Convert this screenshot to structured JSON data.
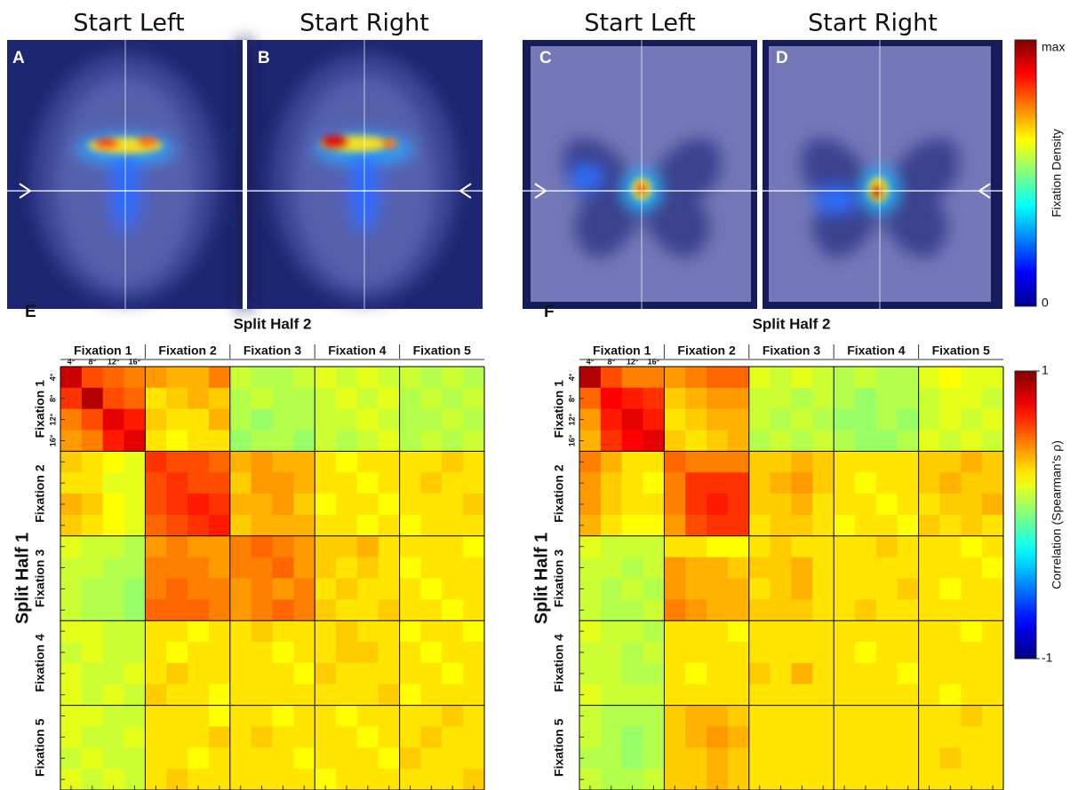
{
  "top_figure": {
    "titles": [
      "Start Left",
      "Start Right",
      "Start Left",
      "Start Right"
    ],
    "panel_labels": [
      "A",
      "B",
      "C",
      "D"
    ],
    "colorbar": {
      "label": "Fixation Density",
      "tick_labels": [
        "max",
        "0"
      ]
    }
  },
  "chart_data": [
    {
      "type": "heatmap",
      "panel_label": "E",
      "title": "Split Half 2",
      "ylabel": "Split Half 1",
      "groups": [
        "Fixation 1",
        "Fixation 2",
        "Fixation 3",
        "Fixation 4",
        "Fixation 5"
      ],
      "categories": [
        "4°",
        "8°",
        "12°",
        "16°",
        null,
        null,
        null,
        null,
        null,
        null,
        null,
        null,
        null,
        null,
        null,
        null,
        null,
        null,
        null,
        null
      ],
      "colormap": "jet",
      "clim": [
        -1,
        1
      ],
      "values": [
        [
          0.85,
          0.6,
          0.55,
          0.5,
          0.45,
          0.4,
          0.4,
          0.5,
          0.15,
          0.1,
          0.1,
          0.15,
          0.2,
          0.15,
          0.2,
          0.15,
          0.15,
          0.1,
          0.15,
          0.1
        ],
        [
          0.65,
          0.9,
          0.6,
          0.55,
          0.3,
          0.35,
          0.4,
          0.35,
          0.1,
          0.15,
          0.1,
          0.1,
          0.15,
          0.2,
          0.15,
          0.2,
          0.1,
          0.15,
          0.1,
          0.15
        ],
        [
          0.5,
          0.6,
          0.8,
          0.7,
          0.35,
          0.3,
          0.3,
          0.4,
          0.1,
          0.05,
          0.1,
          0.1,
          0.15,
          0.15,
          0.2,
          0.15,
          0.1,
          0.1,
          0.15,
          0.1
        ],
        [
          0.45,
          0.5,
          0.7,
          0.8,
          0.3,
          0.25,
          0.3,
          0.3,
          0.05,
          0.1,
          0.1,
          0.05,
          0.15,
          0.1,
          0.15,
          0.2,
          0.1,
          0.15,
          0.1,
          0.15
        ],
        [
          0.35,
          0.3,
          0.25,
          0.2,
          0.65,
          0.6,
          0.6,
          0.55,
          0.4,
          0.45,
          0.4,
          0.4,
          0.3,
          0.25,
          0.3,
          0.3,
          0.3,
          0.3,
          0.35,
          0.3
        ],
        [
          0.3,
          0.3,
          0.2,
          0.2,
          0.6,
          0.65,
          0.6,
          0.6,
          0.35,
          0.45,
          0.45,
          0.4,
          0.3,
          0.3,
          0.25,
          0.3,
          0.3,
          0.35,
          0.3,
          0.3
        ],
        [
          0.4,
          0.35,
          0.25,
          0.2,
          0.6,
          0.65,
          0.7,
          0.65,
          0.4,
          0.4,
          0.45,
          0.35,
          0.25,
          0.3,
          0.3,
          0.25,
          0.3,
          0.3,
          0.3,
          0.35
        ],
        [
          0.35,
          0.3,
          0.25,
          0.2,
          0.55,
          0.6,
          0.65,
          0.7,
          0.35,
          0.4,
          0.4,
          0.4,
          0.3,
          0.3,
          0.25,
          0.3,
          0.25,
          0.3,
          0.3,
          0.3
        ],
        [
          0.2,
          0.15,
          0.15,
          0.1,
          0.45,
          0.5,
          0.45,
          0.45,
          0.5,
          0.55,
          0.5,
          0.45,
          0.35,
          0.35,
          0.4,
          0.3,
          0.3,
          0.3,
          0.3,
          0.25
        ],
        [
          0.15,
          0.15,
          0.1,
          0.1,
          0.5,
          0.5,
          0.5,
          0.45,
          0.5,
          0.5,
          0.55,
          0.45,
          0.35,
          0.3,
          0.35,
          0.3,
          0.25,
          0.3,
          0.3,
          0.3
        ],
        [
          0.15,
          0.1,
          0.1,
          0.05,
          0.5,
          0.55,
          0.5,
          0.5,
          0.45,
          0.5,
          0.45,
          0.5,
          0.3,
          0.35,
          0.3,
          0.3,
          0.3,
          0.25,
          0.3,
          0.3
        ],
        [
          0.15,
          0.1,
          0.1,
          0.05,
          0.55,
          0.55,
          0.55,
          0.5,
          0.45,
          0.5,
          0.55,
          0.5,
          0.35,
          0.3,
          0.3,
          0.35,
          0.3,
          0.3,
          0.25,
          0.3
        ],
        [
          0.2,
          0.2,
          0.15,
          0.15,
          0.3,
          0.3,
          0.25,
          0.3,
          0.3,
          0.35,
          0.3,
          0.3,
          0.3,
          0.35,
          0.3,
          0.3,
          0.25,
          0.3,
          0.3,
          0.25
        ],
        [
          0.15,
          0.2,
          0.15,
          0.15,
          0.3,
          0.25,
          0.3,
          0.3,
          0.3,
          0.3,
          0.25,
          0.3,
          0.3,
          0.35,
          0.35,
          0.3,
          0.3,
          0.25,
          0.3,
          0.3
        ],
        [
          0.2,
          0.15,
          0.15,
          0.2,
          0.3,
          0.35,
          0.3,
          0.3,
          0.3,
          0.3,
          0.3,
          0.25,
          0.35,
          0.3,
          0.3,
          0.3,
          0.3,
          0.3,
          0.25,
          0.3
        ],
        [
          0.2,
          0.15,
          0.2,
          0.15,
          0.35,
          0.3,
          0.3,
          0.25,
          0.3,
          0.3,
          0.3,
          0.3,
          0.3,
          0.3,
          0.3,
          0.35,
          0.25,
          0.3,
          0.3,
          0.3
        ],
        [
          0.2,
          0.2,
          0.15,
          0.15,
          0.3,
          0.3,
          0.3,
          0.25,
          0.3,
          0.3,
          0.25,
          0.3,
          0.3,
          0.25,
          0.3,
          0.3,
          0.3,
          0.3,
          0.35,
          0.3
        ],
        [
          0.2,
          0.15,
          0.15,
          0.2,
          0.3,
          0.3,
          0.3,
          0.35,
          0.3,
          0.35,
          0.3,
          0.3,
          0.3,
          0.3,
          0.25,
          0.3,
          0.3,
          0.35,
          0.3,
          0.3
        ],
        [
          0.15,
          0.2,
          0.15,
          0.15,
          0.3,
          0.3,
          0.25,
          0.3,
          0.3,
          0.3,
          0.3,
          0.25,
          0.3,
          0.3,
          0.3,
          0.25,
          0.35,
          0.3,
          0.3,
          0.3
        ],
        [
          0.2,
          0.15,
          0.2,
          0.15,
          0.3,
          0.35,
          0.3,
          0.3,
          0.3,
          0.3,
          0.3,
          0.3,
          0.25,
          0.3,
          0.3,
          0.3,
          0.3,
          0.3,
          0.3,
          0.35
        ]
      ]
    },
    {
      "type": "heatmap",
      "panel_label": "F",
      "title": "Split Half 2",
      "ylabel": "Split Half 1",
      "groups": [
        "Fixation 1",
        "Fixation 2",
        "Fixation 3",
        "Fixation 4",
        "Fixation 5"
      ],
      "categories": [
        "4°",
        "8°",
        "12°",
        "16°",
        null,
        null,
        null,
        null,
        null,
        null,
        null,
        null,
        null,
        null,
        null,
        null,
        null,
        null,
        null,
        null
      ],
      "colormap": "jet",
      "clim": [
        -1,
        1
      ],
      "colorbar": {
        "label": "Correlation (Spearman's ρ)",
        "ticks": [
          1,
          -1
        ]
      },
      "values": [
        [
          0.9,
          0.6,
          0.5,
          0.5,
          0.45,
          0.5,
          0.55,
          0.55,
          0.2,
          0.15,
          0.2,
          0.15,
          0.1,
          0.15,
          0.1,
          0.1,
          0.2,
          0.25,
          0.2,
          0.2
        ],
        [
          0.55,
          0.75,
          0.7,
          0.65,
          0.35,
          0.4,
          0.45,
          0.45,
          0.15,
          0.15,
          0.1,
          0.15,
          0.1,
          0.05,
          0.1,
          0.1,
          0.15,
          0.2,
          0.2,
          0.15
        ],
        [
          0.45,
          0.7,
          0.8,
          0.7,
          0.3,
          0.35,
          0.4,
          0.4,
          0.15,
          0.1,
          0.15,
          0.1,
          0.05,
          0.05,
          0.1,
          0.05,
          0.15,
          0.2,
          0.15,
          0.2
        ],
        [
          0.4,
          0.65,
          0.75,
          0.8,
          0.35,
          0.3,
          0.35,
          0.4,
          0.1,
          0.15,
          0.1,
          0.15,
          0.1,
          0.05,
          0.05,
          0.1,
          0.2,
          0.15,
          0.2,
          0.15
        ],
        [
          0.5,
          0.4,
          0.3,
          0.3,
          0.55,
          0.5,
          0.5,
          0.5,
          0.35,
          0.35,
          0.4,
          0.35,
          0.3,
          0.3,
          0.3,
          0.3,
          0.35,
          0.35,
          0.4,
          0.35
        ],
        [
          0.45,
          0.35,
          0.3,
          0.25,
          0.5,
          0.65,
          0.65,
          0.65,
          0.35,
          0.4,
          0.45,
          0.35,
          0.3,
          0.25,
          0.3,
          0.3,
          0.35,
          0.4,
          0.35,
          0.35
        ],
        [
          0.45,
          0.35,
          0.3,
          0.3,
          0.5,
          0.65,
          0.7,
          0.65,
          0.35,
          0.35,
          0.4,
          0.3,
          0.3,
          0.3,
          0.25,
          0.3,
          0.3,
          0.35,
          0.35,
          0.4
        ],
        [
          0.4,
          0.3,
          0.25,
          0.25,
          0.45,
          0.6,
          0.65,
          0.65,
          0.3,
          0.35,
          0.35,
          0.3,
          0.25,
          0.3,
          0.3,
          0.25,
          0.35,
          0.3,
          0.35,
          0.3
        ],
        [
          0.2,
          0.15,
          0.15,
          0.15,
          0.3,
          0.3,
          0.25,
          0.25,
          0.3,
          0.35,
          0.3,
          0.3,
          0.3,
          0.3,
          0.35,
          0.3,
          0.3,
          0.3,
          0.25,
          0.3
        ],
        [
          0.15,
          0.15,
          0.1,
          0.15,
          0.45,
          0.4,
          0.4,
          0.35,
          0.35,
          0.35,
          0.4,
          0.3,
          0.3,
          0.3,
          0.3,
          0.3,
          0.3,
          0.3,
          0.3,
          0.25
        ],
        [
          0.15,
          0.1,
          0.15,
          0.1,
          0.45,
          0.4,
          0.4,
          0.4,
          0.3,
          0.35,
          0.4,
          0.3,
          0.3,
          0.3,
          0.3,
          0.35,
          0.3,
          0.25,
          0.3,
          0.3
        ],
        [
          0.15,
          0.1,
          0.1,
          0.15,
          0.5,
          0.45,
          0.4,
          0.4,
          0.35,
          0.35,
          0.35,
          0.3,
          0.3,
          0.35,
          0.3,
          0.3,
          0.3,
          0.3,
          0.3,
          0.3
        ],
        [
          0.2,
          0.15,
          0.15,
          0.1,
          0.3,
          0.3,
          0.3,
          0.25,
          0.3,
          0.3,
          0.3,
          0.3,
          0.3,
          0.3,
          0.3,
          0.3,
          0.3,
          0.3,
          0.25,
          0.3
        ],
        [
          0.15,
          0.15,
          0.1,
          0.15,
          0.3,
          0.3,
          0.3,
          0.3,
          0.3,
          0.3,
          0.3,
          0.3,
          0.3,
          0.25,
          0.3,
          0.3,
          0.3,
          0.3,
          0.3,
          0.3
        ],
        [
          0.15,
          0.15,
          0.1,
          0.1,
          0.3,
          0.25,
          0.3,
          0.3,
          0.35,
          0.3,
          0.4,
          0.3,
          0.3,
          0.3,
          0.3,
          0.25,
          0.3,
          0.3,
          0.3,
          0.3
        ],
        [
          0.2,
          0.15,
          0.15,
          0.15,
          0.3,
          0.3,
          0.3,
          0.3,
          0.3,
          0.3,
          0.3,
          0.3,
          0.3,
          0.3,
          0.3,
          0.3,
          0.3,
          0.25,
          0.3,
          0.3
        ],
        [
          0.15,
          0.1,
          0.1,
          0.1,
          0.35,
          0.4,
          0.4,
          0.35,
          0.3,
          0.3,
          0.3,
          0.3,
          0.3,
          0.3,
          0.3,
          0.3,
          0.3,
          0.3,
          0.35,
          0.3
        ],
        [
          0.15,
          0.1,
          0.05,
          0.1,
          0.35,
          0.4,
          0.45,
          0.4,
          0.3,
          0.3,
          0.3,
          0.3,
          0.3,
          0.3,
          0.3,
          0.3,
          0.3,
          0.3,
          0.3,
          0.3
        ],
        [
          0.1,
          0.1,
          0.05,
          0.1,
          0.35,
          0.35,
          0.4,
          0.35,
          0.3,
          0.3,
          0.3,
          0.3,
          0.3,
          0.3,
          0.3,
          0.3,
          0.3,
          0.35,
          0.3,
          0.3
        ],
        [
          0.15,
          0.1,
          0.1,
          0.15,
          0.35,
          0.35,
          0.4,
          0.35,
          0.3,
          0.3,
          0.3,
          0.3,
          0.3,
          0.3,
          0.3,
          0.3,
          0.3,
          0.3,
          0.3,
          0.3
        ]
      ]
    }
  ]
}
